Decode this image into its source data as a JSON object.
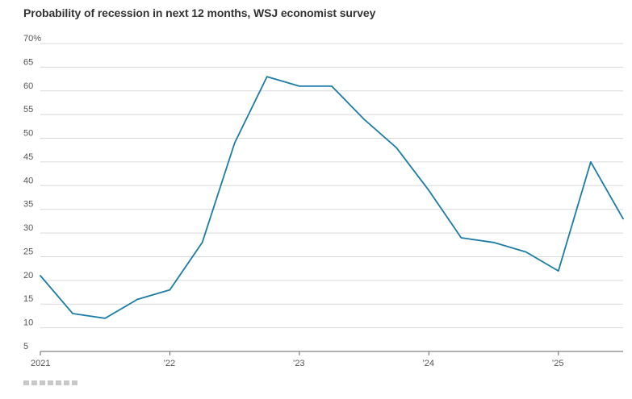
{
  "title": "Probability of recession in next 12 months, WSJ economist survey",
  "colors": {
    "line": "#1a7ca7",
    "grid": "#d9d9d9",
    "axis": "#666666"
  },
  "chart_data": {
    "type": "line",
    "title": "Probability of recession in next 12 months, WSJ economist survey",
    "xlabel": "",
    "ylabel": "",
    "y_unit_suffix": "%",
    "ylim": [
      5,
      70
    ],
    "yticks": [
      5,
      10,
      15,
      20,
      25,
      30,
      35,
      40,
      45,
      50,
      55,
      60,
      65,
      70
    ],
    "ytick_labels": [
      "5",
      "10",
      "15",
      "20",
      "25",
      "30",
      "35",
      "40",
      "45",
      "50",
      "55",
      "60",
      "65",
      "70%"
    ],
    "xlim": [
      2021.0,
      2025.5
    ],
    "xticks": [
      2021,
      2022,
      2023,
      2024,
      2025
    ],
    "xtick_labels": [
      "2021",
      "’22",
      "’23",
      "’24",
      "’25"
    ],
    "grid": true,
    "series": [
      {
        "x": [
          2021.0,
          2021.25,
          2021.5,
          2021.75,
          2022.0,
          2022.25,
          2022.5,
          2022.75,
          2023.0,
          2023.25,
          2023.5,
          2023.75,
          2024.0,
          2024.25,
          2024.5,
          2024.75,
          2025.0,
          2025.25,
          2025.5
        ],
        "values": [
          21,
          13,
          12,
          16,
          18,
          28,
          49,
          63,
          61,
          61,
          54,
          48,
          39,
          29,
          28,
          26,
          22,
          45,
          33
        ]
      }
    ]
  }
}
